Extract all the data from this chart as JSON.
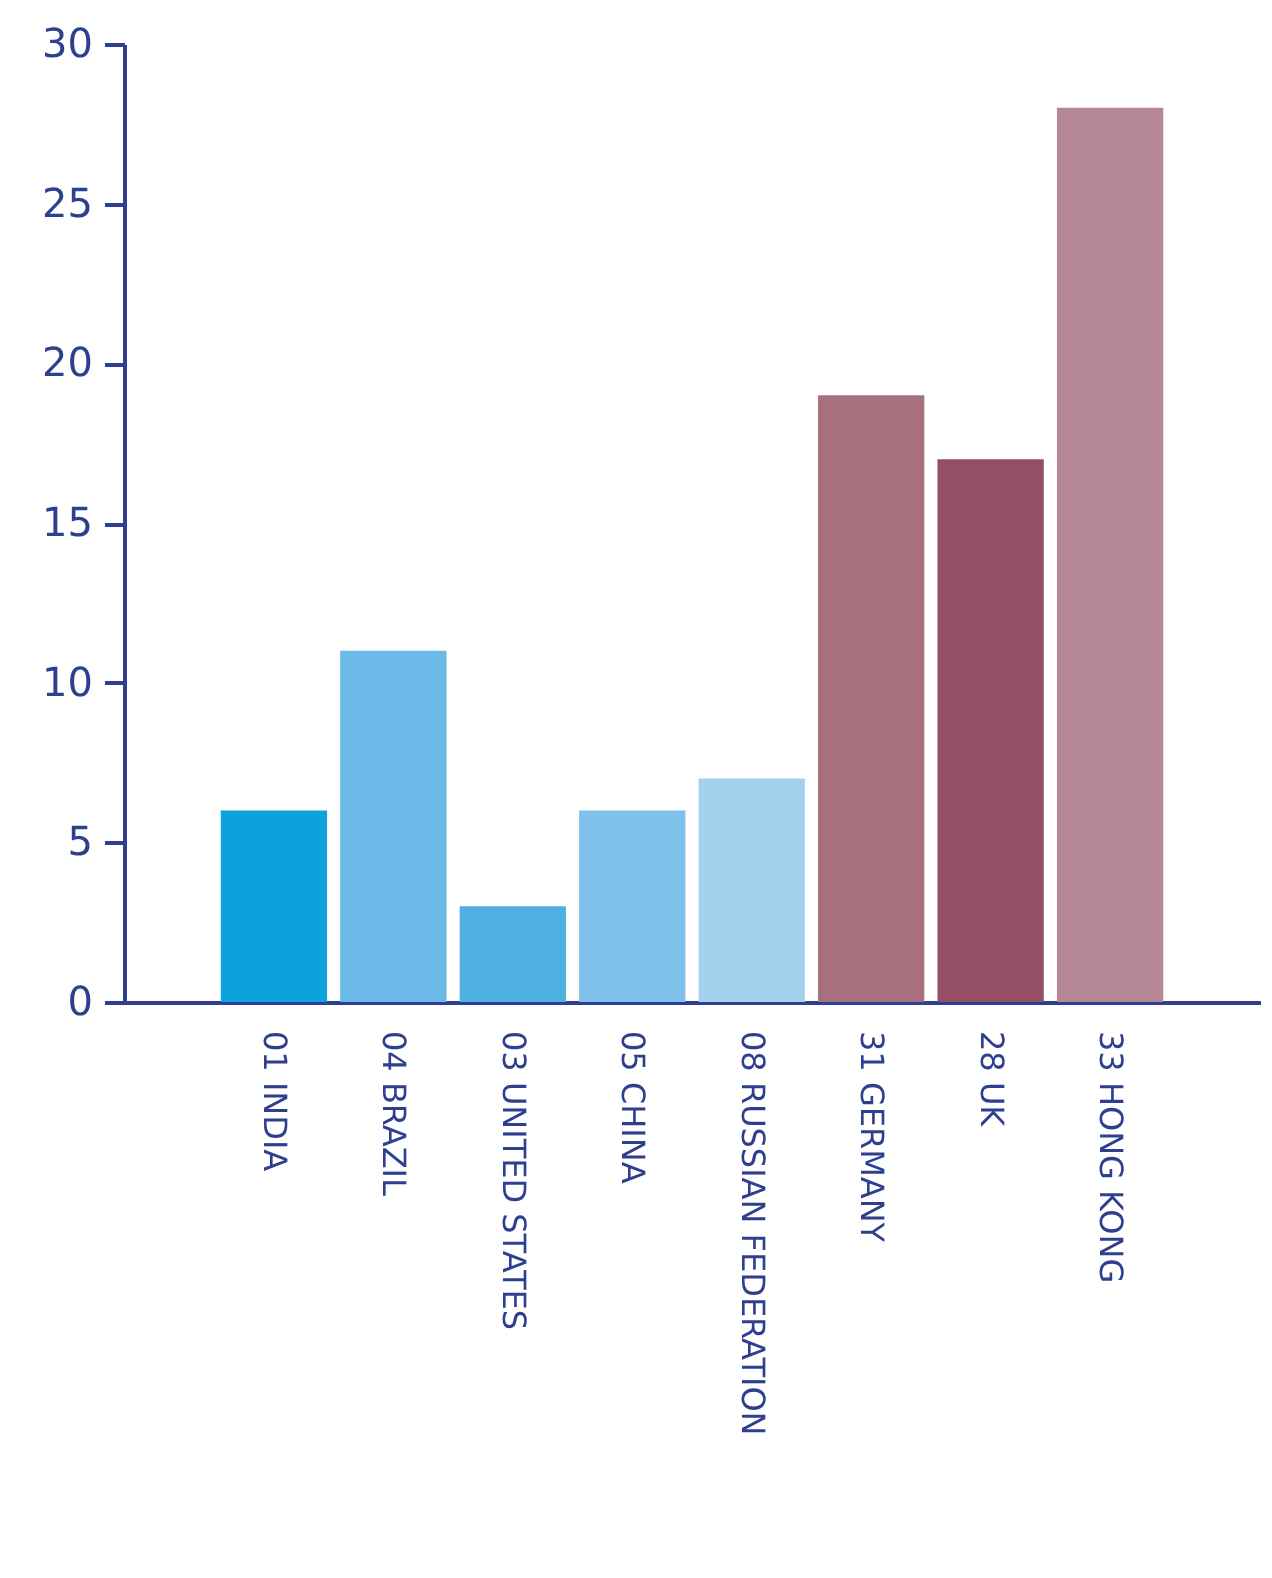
{
  "chart_data": {
    "type": "bar",
    "categories": [
      "01 INDIA",
      "04 BRAZIL",
      "03 UNITED STATES",
      "05 CHINA",
      "08 RUSSIAN FEDERATION",
      "31 GERMANY",
      "28 UK",
      "33 HONG KONG"
    ],
    "values": [
      6,
      11,
      3,
      6,
      7,
      19,
      17,
      28
    ],
    "colors": [
      "#0ca3dc",
      "#6cb8e6",
      "#4fb0e2",
      "#7fc1ea",
      "#a3d2ee",
      "#a7707f",
      "#934f66",
      "#b68895"
    ],
    "ylim": [
      0,
      30
    ],
    "yticks": [
      0,
      5,
      10,
      15,
      20,
      25,
      30
    ],
    "grid": false
  }
}
